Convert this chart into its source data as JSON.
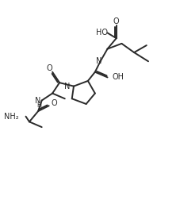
{
  "bg_color": "#ffffff",
  "line_color": "#2a2a2a",
  "line_width": 1.4,
  "font_size": 7.0,
  "xlim": [
    0,
    100
  ],
  "ylim": [
    0,
    100
  ],
  "figsize": [
    2.28,
    2.62
  ],
  "dpi": 100
}
